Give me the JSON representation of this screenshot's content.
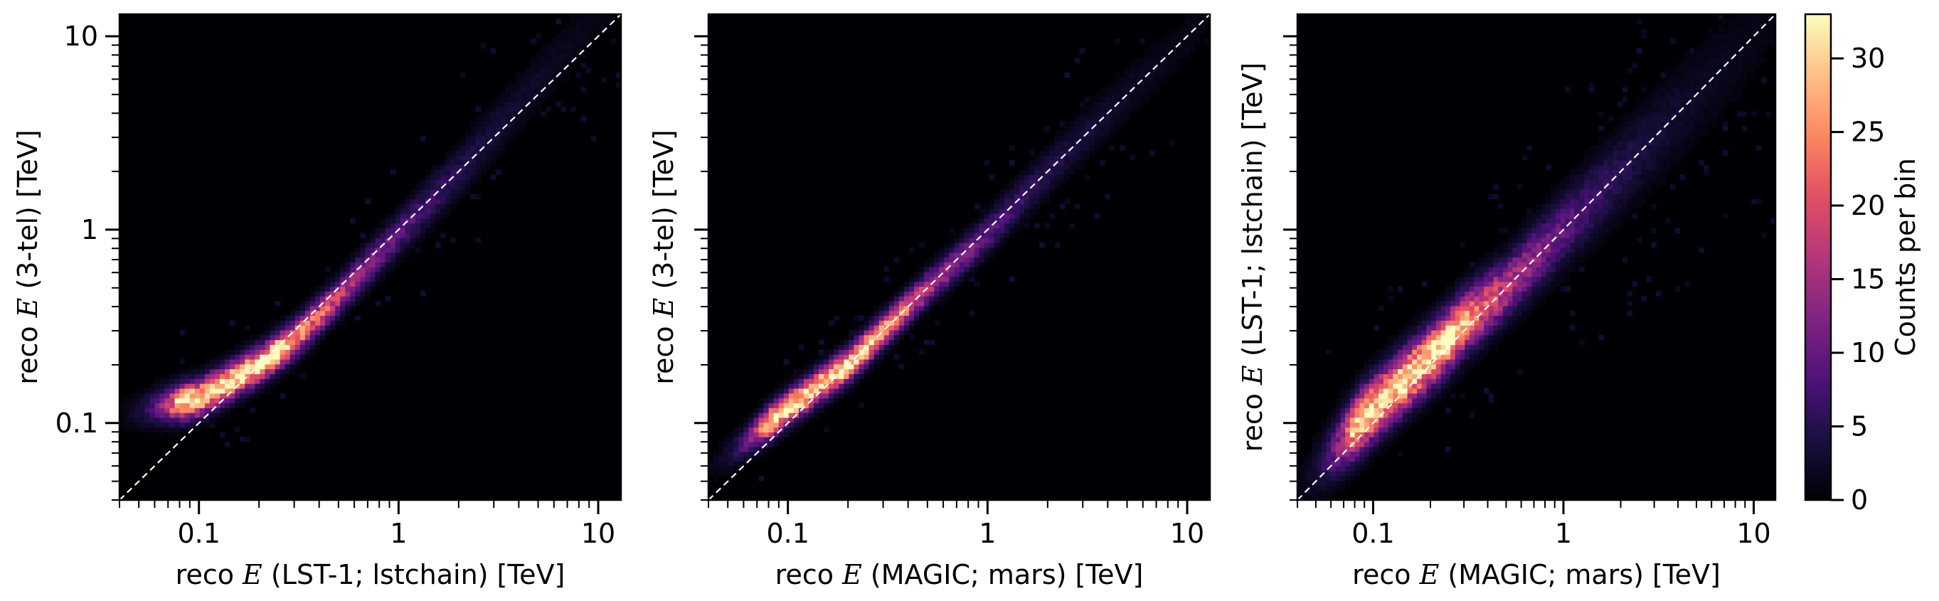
{
  "chart_data": {
    "type": "heatmap",
    "colormap": "magma",
    "x_scale": "log",
    "y_scale": "log",
    "xlim": [
      0.04,
      13
    ],
    "ylim": [
      0.04,
      13
    ],
    "grid": false,
    "diagonal": "y = x (white dashed)",
    "x_tick_labels": [
      "0.1",
      "1",
      "10"
    ],
    "panels": [
      {
        "id": "panel-1",
        "xlabel": {
          "prefix": "reco ",
          "symbol": "E",
          "suffix": " (LST-1; lstchain) [TeV]"
        },
        "ylabel": {
          "prefix": "reco ",
          "symbol": "E",
          "suffix": " (3-tel) [TeV]"
        },
        "y_tick_labels": [
          "0.1",
          "1",
          "10"
        ],
        "ridge": [
          [
            0.06,
            0.12
          ],
          [
            0.1,
            0.135
          ],
          [
            0.2,
            0.2
          ],
          [
            0.3,
            0.27
          ],
          [
            0.5,
            0.45
          ],
          [
            0.8,
            0.75
          ],
          [
            1.0,
            0.95
          ],
          [
            2.0,
            2.0
          ],
          [
            4.0,
            4.5
          ]
        ],
        "width_dex": 0.06
      },
      {
        "id": "panel-2",
        "xlabel": {
          "prefix": "reco ",
          "symbol": "E",
          "suffix": " (MAGIC; mars) [TeV]"
        },
        "ylabel": {
          "prefix": "reco ",
          "symbol": "E",
          "suffix": " (3-tel) [TeV]"
        },
        "y_tick_labels": [],
        "ridge": [
          [
            0.08,
            0.1
          ],
          [
            0.1,
            0.12
          ],
          [
            0.2,
            0.2
          ],
          [
            0.3,
            0.3
          ],
          [
            0.5,
            0.5
          ],
          [
            1.0,
            0.95
          ],
          [
            2.0,
            2.0
          ],
          [
            3.0,
            3.0
          ]
        ],
        "width_dex": 0.055
      },
      {
        "id": "panel-3",
        "xlabel": {
          "prefix": "reco ",
          "symbol": "E",
          "suffix": " (MAGIC; mars) [TeV]"
        },
        "ylabel": {
          "prefix": "reco ",
          "symbol": "E",
          "suffix": " (LST-1; lstchain) [TeV]"
        },
        "y_tick_labels": [],
        "ridge": [
          [
            0.06,
            0.07
          ],
          [
            0.1,
            0.12
          ],
          [
            0.2,
            0.22
          ],
          [
            0.3,
            0.33
          ],
          [
            0.5,
            0.5
          ],
          [
            1.0,
            1.0
          ],
          [
            2.0,
            2.0
          ],
          [
            4.0,
            4.0
          ]
        ],
        "width_dex": 0.1
      }
    ],
    "colorbar": {
      "label": "Counts per bin",
      "range": [
        0,
        33
      ],
      "ticks": [
        0,
        5,
        10,
        15,
        20,
        25,
        30
      ],
      "tick_labels": [
        "0",
        "5",
        "10",
        "15",
        "20",
        "25",
        "30"
      ]
    }
  }
}
